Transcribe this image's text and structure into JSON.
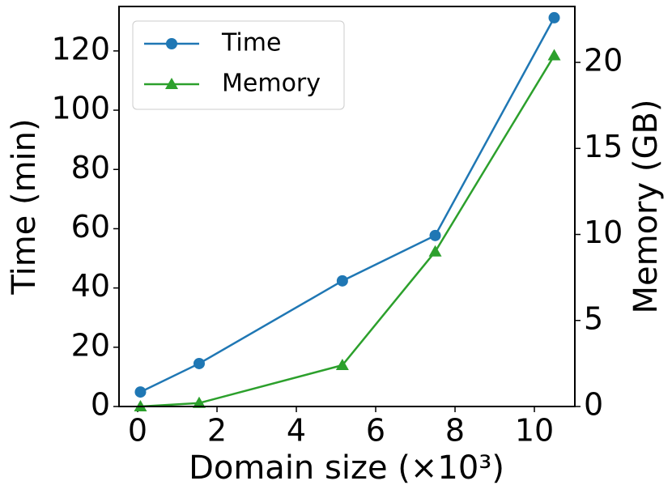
{
  "chart_data": {
    "type": "line",
    "x_label": "Domain size (×10³)",
    "y_label": "Time (min)",
    "y2_label": "Memory (GB)",
    "x": [
      0.07,
      1.55,
      5.16,
      7.5,
      10.5
    ],
    "series": [
      {
        "name": "Time",
        "color": "#1f77b4",
        "marker": "circle",
        "values": [
          4.9,
          14.5,
          42.4,
          57.7,
          131.2
        ]
      },
      {
        "name": "Memory",
        "color": "#2ca02c",
        "marker": "triangle",
        "axis": "y2",
        "values": [
          0,
          0.2,
          2.4,
          9.0,
          20.4
        ]
      }
    ],
    "xlim": [
      -0.47,
      11.02
    ],
    "xticks": [
      0,
      2,
      4,
      6,
      8,
      10
    ],
    "ylim": [
      0,
      135
    ],
    "yticks": [
      0,
      20,
      40,
      60,
      80,
      100,
      120
    ],
    "y2lim": [
      0,
      23.25
    ],
    "y2ticks": [
      0,
      5,
      10,
      15,
      20
    ],
    "legend": "upper-left"
  }
}
